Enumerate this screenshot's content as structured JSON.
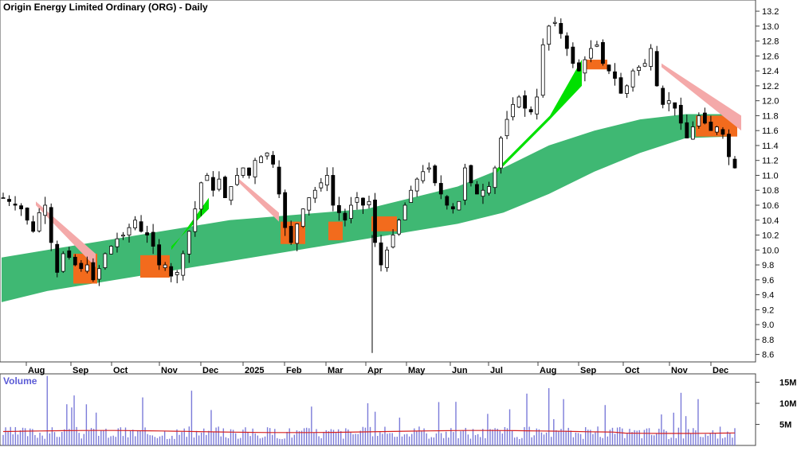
{
  "chart_data": {
    "type": "line",
    "title": "Origin Energy Limited Ordinary (ORG) - Daily",
    "price_panel": {
      "ylim": [
        8.5,
        13.35
      ],
      "y_ticks": [
        8.6,
        8.8,
        9.0,
        9.2,
        9.4,
        9.6,
        9.8,
        10.0,
        10.2,
        10.4,
        10.6,
        10.8,
        11.0,
        11.2,
        11.4,
        11.6,
        11.8,
        12.0,
        12.2,
        12.4,
        12.6,
        12.8,
        13.0,
        13.2
      ],
      "x_tick_labels": [
        "Aug",
        "Sep",
        "Oct",
        "Nov",
        "Dec",
        "2025",
        "Feb",
        "Mar",
        "Apr",
        "May",
        "Jun",
        "Jul",
        "Aug",
        "Sep",
        "Oct",
        "Nov",
        "Dec"
      ],
      "series": [
        {
          "kind": "candlestick",
          "values": [
            10.7,
            10.65,
            10.6,
            10.55,
            10.4,
            10.25,
            10.5,
            10.6,
            10.1,
            9.7,
            9.95,
            9.9,
            9.8,
            9.75,
            9.8,
            9.6,
            9.75,
            9.95,
            10.05,
            10.15,
            10.2,
            10.3,
            10.4,
            10.25,
            10.2,
            10.05,
            9.8,
            9.8,
            9.65,
            9.7,
            9.95,
            10.25,
            10.55,
            10.9,
            11.0,
            10.8,
            10.95,
            10.7,
            10.85,
            11.0,
            11.1,
            11.0,
            11.2,
            11.25,
            11.3,
            11.15,
            10.75,
            10.3,
            10.1,
            10.35,
            10.55,
            10.7,
            10.8,
            10.9,
            11.0,
            10.6,
            10.5,
            10.4,
            10.6,
            10.7,
            10.6,
            10.65,
            10.1,
            9.8,
            10.0,
            10.2,
            10.4,
            10.6,
            10.8,
            10.95,
            11.05,
            11.1,
            10.9,
            10.75,
            10.6,
            10.55,
            10.65,
            11.1,
            10.9,
            10.75,
            10.8,
            10.85,
            11.1,
            11.5,
            11.75,
            11.95,
            12.05,
            11.9,
            11.85,
            12.05,
            12.75,
            13.0,
            13.05,
            12.9,
            12.7,
            12.5,
            12.4,
            12.55,
            12.7,
            12.75,
            12.5,
            12.4,
            12.3,
            12.1,
            12.2,
            12.4,
            12.45,
            12.5,
            12.7,
            12.2,
            11.95,
            12.0,
            11.9,
            11.7,
            11.5,
            11.65,
            11.8,
            11.7,
            11.6,
            11.65,
            11.55,
            11.25,
            11.1
          ]
        },
        {
          "kind": "moving-average-band",
          "name": "",
          "color": "#3fb873",
          "upper": [
            9.9,
            10.0,
            10.1,
            10.2,
            10.3,
            10.4,
            10.45,
            10.5,
            10.55,
            10.7,
            10.85,
            11.1,
            11.4,
            11.6,
            11.75,
            11.82,
            11.82
          ],
          "lower": [
            9.3,
            9.45,
            9.55,
            9.65,
            9.75,
            9.85,
            9.95,
            10.05,
            10.15,
            10.25,
            10.35,
            10.5,
            10.75,
            11.05,
            11.3,
            11.5,
            11.52
          ]
        }
      ]
    },
    "volume_panel": {
      "ylabel": "Volume",
      "y_tick_labels": [
        "15M",
        "10M",
        "5M"
      ],
      "y_ticks": [
        15,
        10,
        5
      ],
      "bar_color": "#7b7bd9",
      "ma_color": "#d62020"
    },
    "colors": {
      "band_green": "#3fb873",
      "bright_green": "#00e000",
      "orange": "#f26b1d",
      "pink": "#f4a9a9"
    }
  }
}
